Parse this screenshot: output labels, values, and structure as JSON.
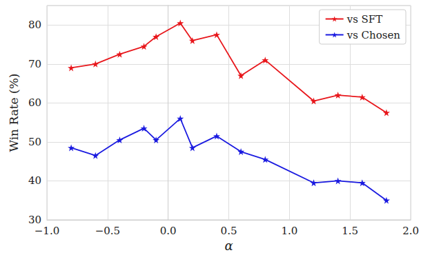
{
  "chart_data": {
    "type": "line",
    "x_label": "α",
    "y_label": "Win Rate (%)",
    "x": [
      -0.8,
      -0.6,
      -0.4,
      -0.2,
      -0.1,
      0.1,
      0.2,
      0.4,
      0.6,
      0.8,
      1.2,
      1.4,
      1.6,
      1.8
    ],
    "series": [
      {
        "name": "vs SFT",
        "color": "#e8161b",
        "marker": "star",
        "values": [
          69,
          70,
          72.5,
          74.5,
          77,
          80.5,
          76,
          77.5,
          67,
          71,
          60.5,
          62,
          61.5,
          57.5
        ]
      },
      {
        "name": "vs Chosen",
        "color": "#1a1ae0",
        "marker": "star",
        "values": [
          48.5,
          46.5,
          50.5,
          53.5,
          50.5,
          56,
          48.5,
          51.5,
          47.5,
          45.5,
          39.5,
          40,
          39.5,
          35
        ]
      }
    ],
    "xlim": [
      -1.0,
      2.0
    ],
    "xticks": [
      {
        "value": -1.0,
        "label": "−1.0"
      },
      {
        "value": -0.5,
        "label": "−0.5"
      },
      {
        "value": 0.0,
        "label": "0.0"
      },
      {
        "value": 0.5,
        "label": "0.5"
      },
      {
        "value": 1.0,
        "label": "1.0"
      },
      {
        "value": 1.5,
        "label": "1.5"
      },
      {
        "value": 2.0,
        "label": "2.0"
      }
    ],
    "ylim": [
      30,
      85
    ],
    "yticks": [
      30,
      40,
      50,
      60,
      70,
      80
    ],
    "grid": true,
    "legend": "upper right"
  }
}
